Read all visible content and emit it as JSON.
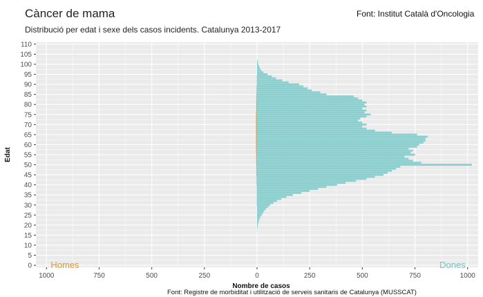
{
  "header": {
    "title": "Càncer de mama",
    "subtitle": "Distribució per edat i sexe dels casos incidents. Catalunya 2013-2017",
    "source_top": "Font: Institut Català d'Oncologia",
    "source_bottom": "Font: Registre de morbiditat i utilització de serveis sanitaris de Catalunya (MUSSCAT)"
  },
  "colors": {
    "panel": "#ebebeb",
    "grid": "#ffffff",
    "dones": "#8ccfcf",
    "homes": "#e8a33c",
    "homes_label": "#e09a1a",
    "dones_label": "#6ec6c6",
    "text": "#4d4d4d"
  },
  "chart_data": {
    "type": "bar",
    "orientation": "horizontal-pyramid",
    "xlabel": "Nombre de casos",
    "ylabel": "Edat",
    "x_ticks": [
      "1000",
      "750",
      "500",
      "250",
      "0",
      "250",
      "500",
      "750",
      "1000"
    ],
    "y_ticks": [
      "0",
      "5",
      "10",
      "15",
      "20",
      "25",
      "30",
      "35",
      "40",
      "45",
      "50",
      "55",
      "60",
      "65",
      "70",
      "75",
      "80",
      "85",
      "90",
      "95",
      "100",
      "105",
      "110"
    ],
    "xlim": [
      -1050,
      1050
    ],
    "ylim": [
      -1,
      111
    ],
    "grid": true,
    "annotations": [
      {
        "text": "Homes",
        "side": "left"
      },
      {
        "text": "Dones",
        "side": "right"
      }
    ],
    "ages": [
      0,
      1,
      2,
      3,
      4,
      5,
      6,
      7,
      8,
      9,
      10,
      11,
      12,
      13,
      14,
      15,
      16,
      17,
      18,
      19,
      20,
      21,
      22,
      23,
      24,
      25,
      26,
      27,
      28,
      29,
      30,
      31,
      32,
      33,
      34,
      35,
      36,
      37,
      38,
      39,
      40,
      41,
      42,
      43,
      44,
      45,
      46,
      47,
      48,
      49,
      50,
      51,
      52,
      53,
      54,
      55,
      56,
      57,
      58,
      59,
      60,
      61,
      62,
      63,
      64,
      65,
      66,
      67,
      68,
      69,
      70,
      71,
      72,
      73,
      74,
      75,
      76,
      77,
      78,
      79,
      80,
      81,
      82,
      83,
      84,
      85,
      86,
      87,
      88,
      89,
      90,
      91,
      92,
      93,
      94,
      95,
      96,
      97,
      98,
      99,
      100,
      101,
      102
    ],
    "series": [
      {
        "name": "Dones",
        "values": [
          0,
          0,
          0,
          0,
          0,
          0,
          0,
          0,
          0,
          0,
          0,
          0,
          0,
          0,
          0,
          0,
          0,
          1,
          1,
          2,
          4,
          6,
          8,
          12,
          16,
          22,
          28,
          34,
          42,
          52,
          62,
          78,
          95,
          115,
          140,
          170,
          210,
          250,
          290,
          330,
          380,
          420,
          470,
          520,
          560,
          600,
          620,
          640,
          660,
          680,
          1020,
          780,
          740,
          720,
          700,
          750,
          730,
          740,
          720,
          760,
          770,
          790,
          800,
          800,
          810,
          760,
          640,
          560,
          520,
          500,
          520,
          500,
          480,
          490,
          520,
          540,
          510,
          520,
          500,
          520,
          510,
          520,
          500,
          480,
          460,
          330,
          300,
          260,
          240,
          220,
          200,
          150,
          120,
          90,
          70,
          50,
          30,
          20,
          14,
          10,
          6,
          4,
          2
        ]
      },
      {
        "name": "Homes",
        "values": [
          0,
          0,
          0,
          0,
          0,
          0,
          0,
          0,
          0,
          0,
          0,
          0,
          0,
          0,
          0,
          0,
          0,
          0,
          0,
          0,
          0,
          0,
          0,
          0,
          0,
          0,
          0,
          0,
          0,
          0,
          1,
          1,
          1,
          1,
          1,
          1,
          1,
          1,
          1,
          1,
          2,
          2,
          2,
          2,
          2,
          3,
          3,
          3,
          3,
          3,
          4,
          4,
          4,
          4,
          4,
          4,
          5,
          5,
          5,
          5,
          5,
          5,
          5,
          5,
          5,
          5,
          5,
          5,
          5,
          5,
          5,
          5,
          5,
          5,
          5,
          5,
          4,
          4,
          4,
          4,
          4,
          4,
          3,
          3,
          3,
          3,
          2,
          2,
          2,
          2,
          1,
          1,
          1,
          1,
          1,
          0,
          0,
          0,
          0,
          0,
          0,
          0,
          0
        ]
      }
    ]
  }
}
